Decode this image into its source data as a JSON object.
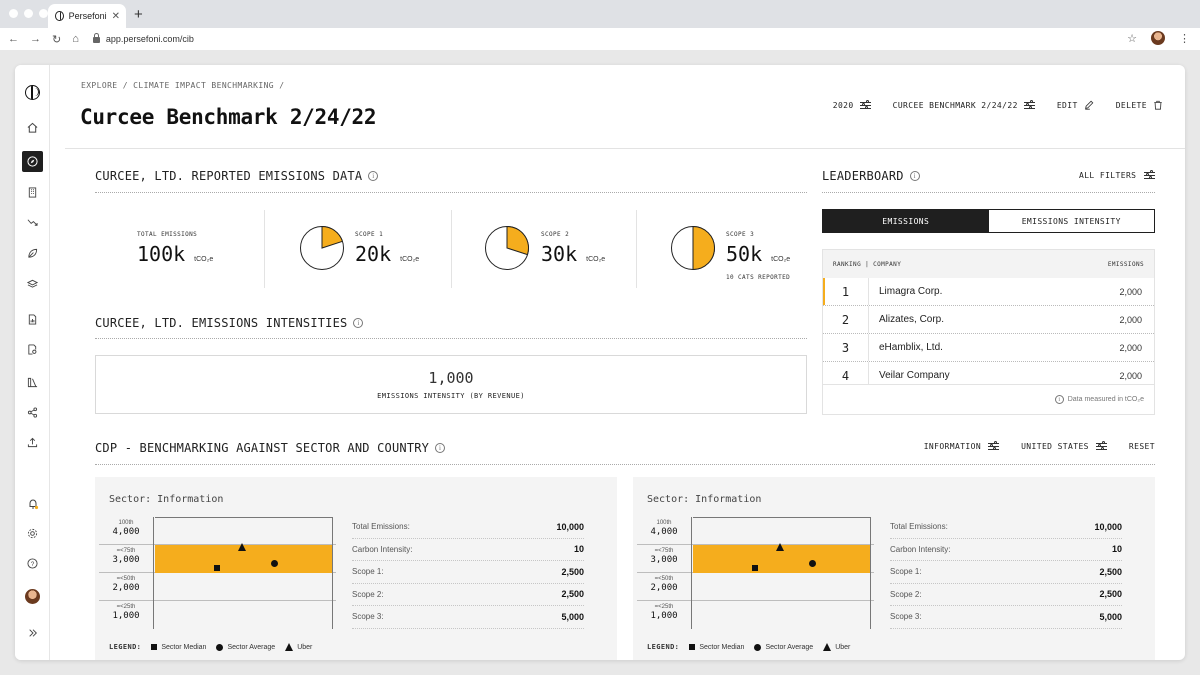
{
  "browser": {
    "tab_title": "Persefoni",
    "url": "app.persefoni.com/cib"
  },
  "header": {
    "breadcrumb": "EXPLORE / CLIMATE IMPACT BENCHMARKING /",
    "title": "Curcee Benchmark 2/24/22",
    "year_filter": "2020",
    "benchmark_filter": "CURCEE BENCHMARK 2/24/22",
    "edit_label": "EDIT",
    "delete_label": "DELETE"
  },
  "emissions": {
    "title": "CURCEE, LTD. REPORTED EMISSIONS DATA",
    "total": {
      "label": "TOTAL EMISSIONS",
      "value": "100k",
      "unit": "tCO₂e"
    },
    "scope1": {
      "label": "SCOPE 1",
      "value": "20k",
      "unit": "tCO₂e",
      "share": 0.2
    },
    "scope2": {
      "label": "SCOPE 2",
      "value": "30k",
      "unit": "tCO₂e",
      "share": 0.3
    },
    "scope3": {
      "label": "SCOPE 3",
      "value": "50k",
      "unit": "tCO₂e",
      "share": 0.5,
      "note": "10 CATS REPORTED"
    },
    "accent_color": "#f5ad1d"
  },
  "intensities": {
    "title": "CURCEE, LTD. EMISSIONS INTENSITIES",
    "value": "1,000",
    "label": "EMISSIONS INTENSITY (BY REVENUE)"
  },
  "leaderboard": {
    "title": "LEADERBOARD",
    "filters_label": "ALL FILTERS",
    "tabs": [
      "EMISSIONS",
      "EMISSIONS INTENSITY"
    ],
    "col_company": "RANKING | COMPANY",
    "col_emissions": "EMISSIONS",
    "rows": [
      {
        "rank": "1",
        "company": "Limagra Corp.",
        "emissions": "2,000"
      },
      {
        "rank": "2",
        "company": "Alizates, Corp.",
        "emissions": "2,000"
      },
      {
        "rank": "3",
        "company": "eHamblix, Ltd.",
        "emissions": "2,000"
      },
      {
        "rank": "4",
        "company": "Veilar Company",
        "emissions": "2,000"
      }
    ],
    "footnote": "Data measured in tCO₂e"
  },
  "cdp": {
    "title": "CDP - BENCHMARKING AGAINST SECTOR AND COUNTRY",
    "sector_filter": "INFORMATION",
    "country_filter": "UNITED STATES",
    "reset_label": "RESET",
    "panels": [
      {
        "title": "Sector: Information",
        "rows": [
          {
            "pct": "100th",
            "value": "4,000"
          },
          {
            "pct": "=<75th",
            "value": "3,000"
          },
          {
            "pct": "=<50th",
            "value": "2,000"
          },
          {
            "pct": "=<25th",
            "value": "1,000"
          }
        ],
        "stats": [
          {
            "label": "Total Emissions:",
            "value": "10,000"
          },
          {
            "label": "Carbon Intensity:",
            "value": "10"
          },
          {
            "label": "Scope 1:",
            "value": "2,500"
          },
          {
            "label": "Scope 2:",
            "value": "2,500"
          },
          {
            "label": "Scope 3:",
            "value": "5,000"
          }
        ],
        "legend_title": "LEGEND:",
        "legend": [
          "Sector Median",
          "Sector Average",
          "Uber"
        ]
      },
      {
        "title": "Sector: Information",
        "rows": [
          {
            "pct": "100th",
            "value": "4,000"
          },
          {
            "pct": "=<75th",
            "value": "3,000"
          },
          {
            "pct": "=<50th",
            "value": "2,000"
          },
          {
            "pct": "=<25th",
            "value": "1,000"
          }
        ],
        "stats": [
          {
            "label": "Total Emissions:",
            "value": "10,000"
          },
          {
            "label": "Carbon Intensity:",
            "value": "10"
          },
          {
            "label": "Scope 1:",
            "value": "2,500"
          },
          {
            "label": "Scope 2:",
            "value": "2,500"
          },
          {
            "label": "Scope 3:",
            "value": "5,000"
          }
        ],
        "legend_title": "LEGEND:",
        "legend": [
          "Sector Median",
          "Sector Average",
          "Uber"
        ]
      }
    ]
  },
  "icons": {
    "sidebar": [
      "persefoni-logo-icon",
      "home-icon",
      "explore-icon",
      "building-icon",
      "trend-icon",
      "leaf-icon",
      "layers-icon",
      "report-icon",
      "document-search-icon",
      "library-icon",
      "share-icon",
      "upload-icon",
      "bell-icon",
      "gear-icon",
      "help-icon",
      "avatar",
      "expand-icon"
    ]
  }
}
